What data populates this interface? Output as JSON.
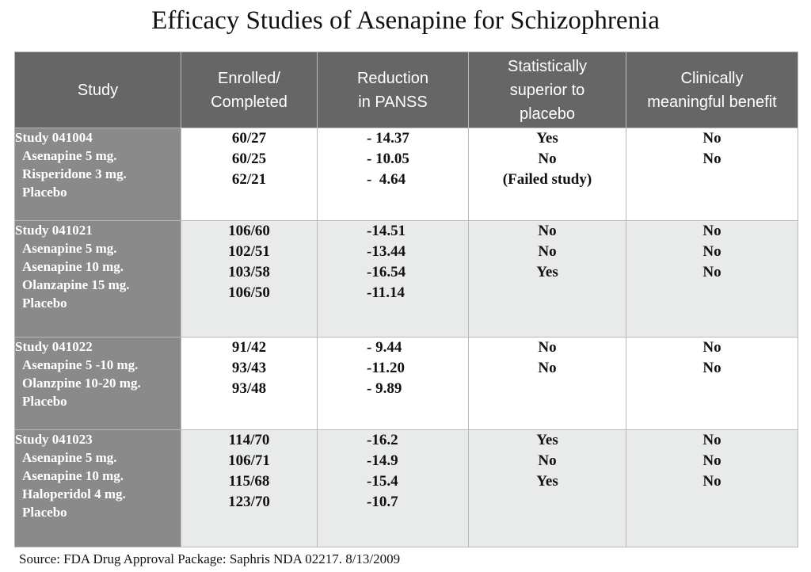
{
  "title": "Efficacy Studies of Asenapine for Schizophrenia",
  "headers": {
    "study": [
      "Study"
    ],
    "enrolled": [
      "Enrolled/",
      "Completed"
    ],
    "reduction": [
      "Reduction",
      "in PANSS"
    ],
    "superior": [
      "Statistically",
      "superior to",
      "placebo"
    ],
    "clinical": [
      "Clinically",
      "meaningful benefit"
    ]
  },
  "studies": [
    {
      "name": "Study 041004",
      "arms": [
        "Asenapine 5 mg.",
        "Risperidone 3 mg.",
        "Placebo"
      ],
      "enrolled": [
        "60/27",
        "60/25",
        "62/21"
      ],
      "reduction": [
        "- 14.37",
        "- 10.05",
        "-  4.64"
      ],
      "superior": [
        "Yes",
        "No",
        "(Failed study)"
      ],
      "clinical": [
        "No",
        "No"
      ]
    },
    {
      "name": "Study 041021",
      "arms": [
        "Asenapine 5 mg.",
        "Asenapine 10 mg.",
        "Olanzapine 15 mg.",
        "Placebo"
      ],
      "enrolled": [
        "106/60",
        "102/51",
        "103/58",
        "106/50"
      ],
      "reduction": [
        "-14.51",
        "-13.44",
        "-16.54",
        "-11.14"
      ],
      "superior": [
        "No",
        "No",
        "Yes"
      ],
      "clinical": [
        "No",
        "No",
        "No"
      ]
    },
    {
      "name": "Study 041022",
      "arms": [
        "Asenapine 5 -10 mg.",
        "Olanzpine 10-20 mg.",
        "Placebo"
      ],
      "enrolled": [
        "91/42",
        "93/43",
        "93/48"
      ],
      "reduction": [
        "- 9.44",
        "-11.20",
        "- 9.89"
      ],
      "superior": [
        "No",
        "No"
      ],
      "clinical": [
        "No",
        "No"
      ]
    },
    {
      "name": "Study 041023",
      "arms": [
        "Asenapine 5 mg.",
        "Asenapine 10 mg.",
        "Haloperidol 4 mg.",
        "Placebo"
      ],
      "enrolled": [
        "114/70",
        "106/71",
        "115/68",
        "123/70"
      ],
      "reduction": [
        "-16.2",
        "-14.9",
        "-15.4",
        "-10.7"
      ],
      "superior": [
        "Yes",
        "No",
        "Yes"
      ],
      "clinical": [
        "No",
        "No",
        "No"
      ]
    }
  ],
  "source": "Source:  FDA Drug Approval Package: Saphris NDA 02217. 8/13/2009"
}
